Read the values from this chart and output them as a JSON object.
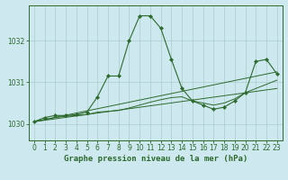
{
  "title": "Graphe pression niveau de la mer (hPa)",
  "background_color": "#cde8ee",
  "grid_color": "#aacccc",
  "line_color": "#2d6a2d",
  "xlim": [
    -0.5,
    23.5
  ],
  "ylim": [
    1029.6,
    1032.85
  ],
  "yticks": [
    1030,
    1031,
    1032
  ],
  "xticks": [
    0,
    1,
    2,
    3,
    4,
    5,
    6,
    7,
    8,
    9,
    10,
    11,
    12,
    13,
    14,
    15,
    16,
    17,
    18,
    19,
    20,
    21,
    22,
    23
  ],
  "series_main": {
    "x": [
      0,
      1,
      2,
      3,
      4,
      5,
      6,
      7,
      8,
      9,
      10,
      11,
      12,
      13,
      14,
      15,
      16,
      17,
      18,
      19,
      20,
      21,
      22,
      23
    ],
    "y": [
      1030.05,
      1030.15,
      1030.2,
      1030.2,
      1030.22,
      1030.28,
      1030.65,
      1031.15,
      1031.15,
      1032.0,
      1032.6,
      1032.6,
      1032.3,
      1031.55,
      1030.85,
      1030.55,
      1030.45,
      1030.35,
      1030.4,
      1030.55,
      1030.75,
      1031.5,
      1031.55,
      1031.2
    ]
  },
  "series_trend": {
    "x": [
      0,
      23
    ],
    "y": [
      1030.05,
      1031.25
    ]
  },
  "series_lower1": {
    "x": [
      0,
      1,
      2,
      3,
      4,
      5,
      6,
      7,
      8,
      9,
      10,
      11,
      12,
      13,
      14,
      15,
      16,
      17,
      18,
      19,
      20,
      21,
      22,
      23
    ],
    "y": [
      1030.05,
      1030.1,
      1030.15,
      1030.18,
      1030.2,
      1030.22,
      1030.28,
      1030.3,
      1030.32,
      1030.38,
      1030.45,
      1030.52,
      1030.58,
      1030.63,
      1030.65,
      1030.55,
      1030.5,
      1030.45,
      1030.5,
      1030.6,
      1030.75,
      1030.85,
      1030.95,
      1031.05
    ]
  },
  "series_lower2": {
    "x": [
      0,
      23
    ],
    "y": [
      1030.05,
      1030.85
    ]
  },
  "series_right": {
    "x": [
      15,
      16,
      17,
      18,
      19,
      20,
      21,
      22,
      23
    ],
    "y": [
      1030.55,
      1030.45,
      1030.35,
      1030.4,
      1030.55,
      1030.75,
      1031.5,
      1031.55,
      1031.2
    ]
  },
  "tick_fontsize": 5.5,
  "title_fontsize": 6.5
}
